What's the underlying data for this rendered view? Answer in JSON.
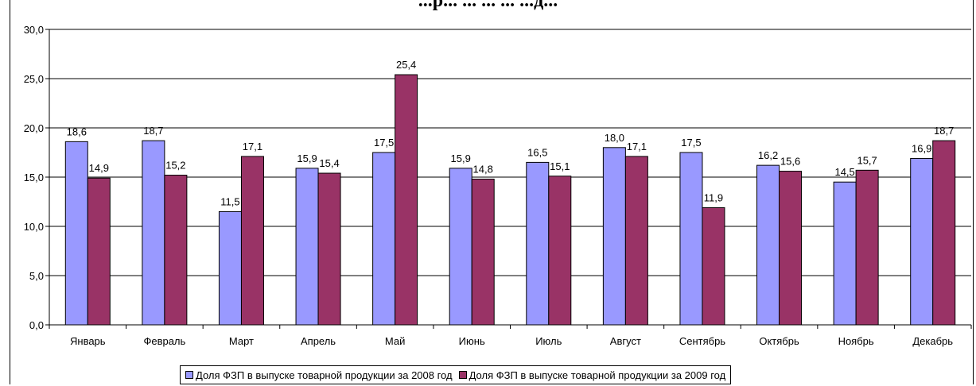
{
  "chart_data": {
    "type": "bar",
    "title": "...р... ... ... ... ...д...",
    "categories": [
      "Январь",
      "Февраль",
      "Март",
      "Апрель",
      "Май",
      "Июнь",
      "Июль",
      "Август",
      "Сентябрь",
      "Октябрь",
      "Ноябрь",
      "Декабрь"
    ],
    "series": [
      {
        "name": "Доля ФЗП в выпуске товарной продукции за 2008 год",
        "values": [
          18.6,
          18.7,
          11.5,
          15.9,
          17.5,
          15.9,
          16.5,
          18.0,
          17.5,
          16.2,
          14.5,
          16.9
        ],
        "labels": [
          "18,6",
          "18,7",
          "11,5",
          "15,9",
          "17,5",
          "15,9",
          "16,5",
          "18,0",
          "17,5",
          "16,2",
          "14,5",
          "16,9"
        ],
        "color": "#9999FF"
      },
      {
        "name": "Доля ФЗП в выпуске товарной продукции за 2009 год",
        "values": [
          14.9,
          15.2,
          17.1,
          15.4,
          25.4,
          14.8,
          15.1,
          17.1,
          11.9,
          15.6,
          15.7,
          18.7
        ],
        "labels": [
          "14,9",
          "15,2",
          "17,1",
          "15,4",
          "25,4",
          "14,8",
          "15,1",
          "17,1",
          "11,9",
          "15,6",
          "15,7",
          "18,7"
        ],
        "color": "#993366"
      }
    ],
    "ylim": [
      0,
      30
    ],
    "yticks": [
      "0,0",
      "5,0",
      "10,0",
      "15,0",
      "20,0",
      "25,0",
      "30,0"
    ],
    "grid": true,
    "legend_position": "bottom"
  }
}
